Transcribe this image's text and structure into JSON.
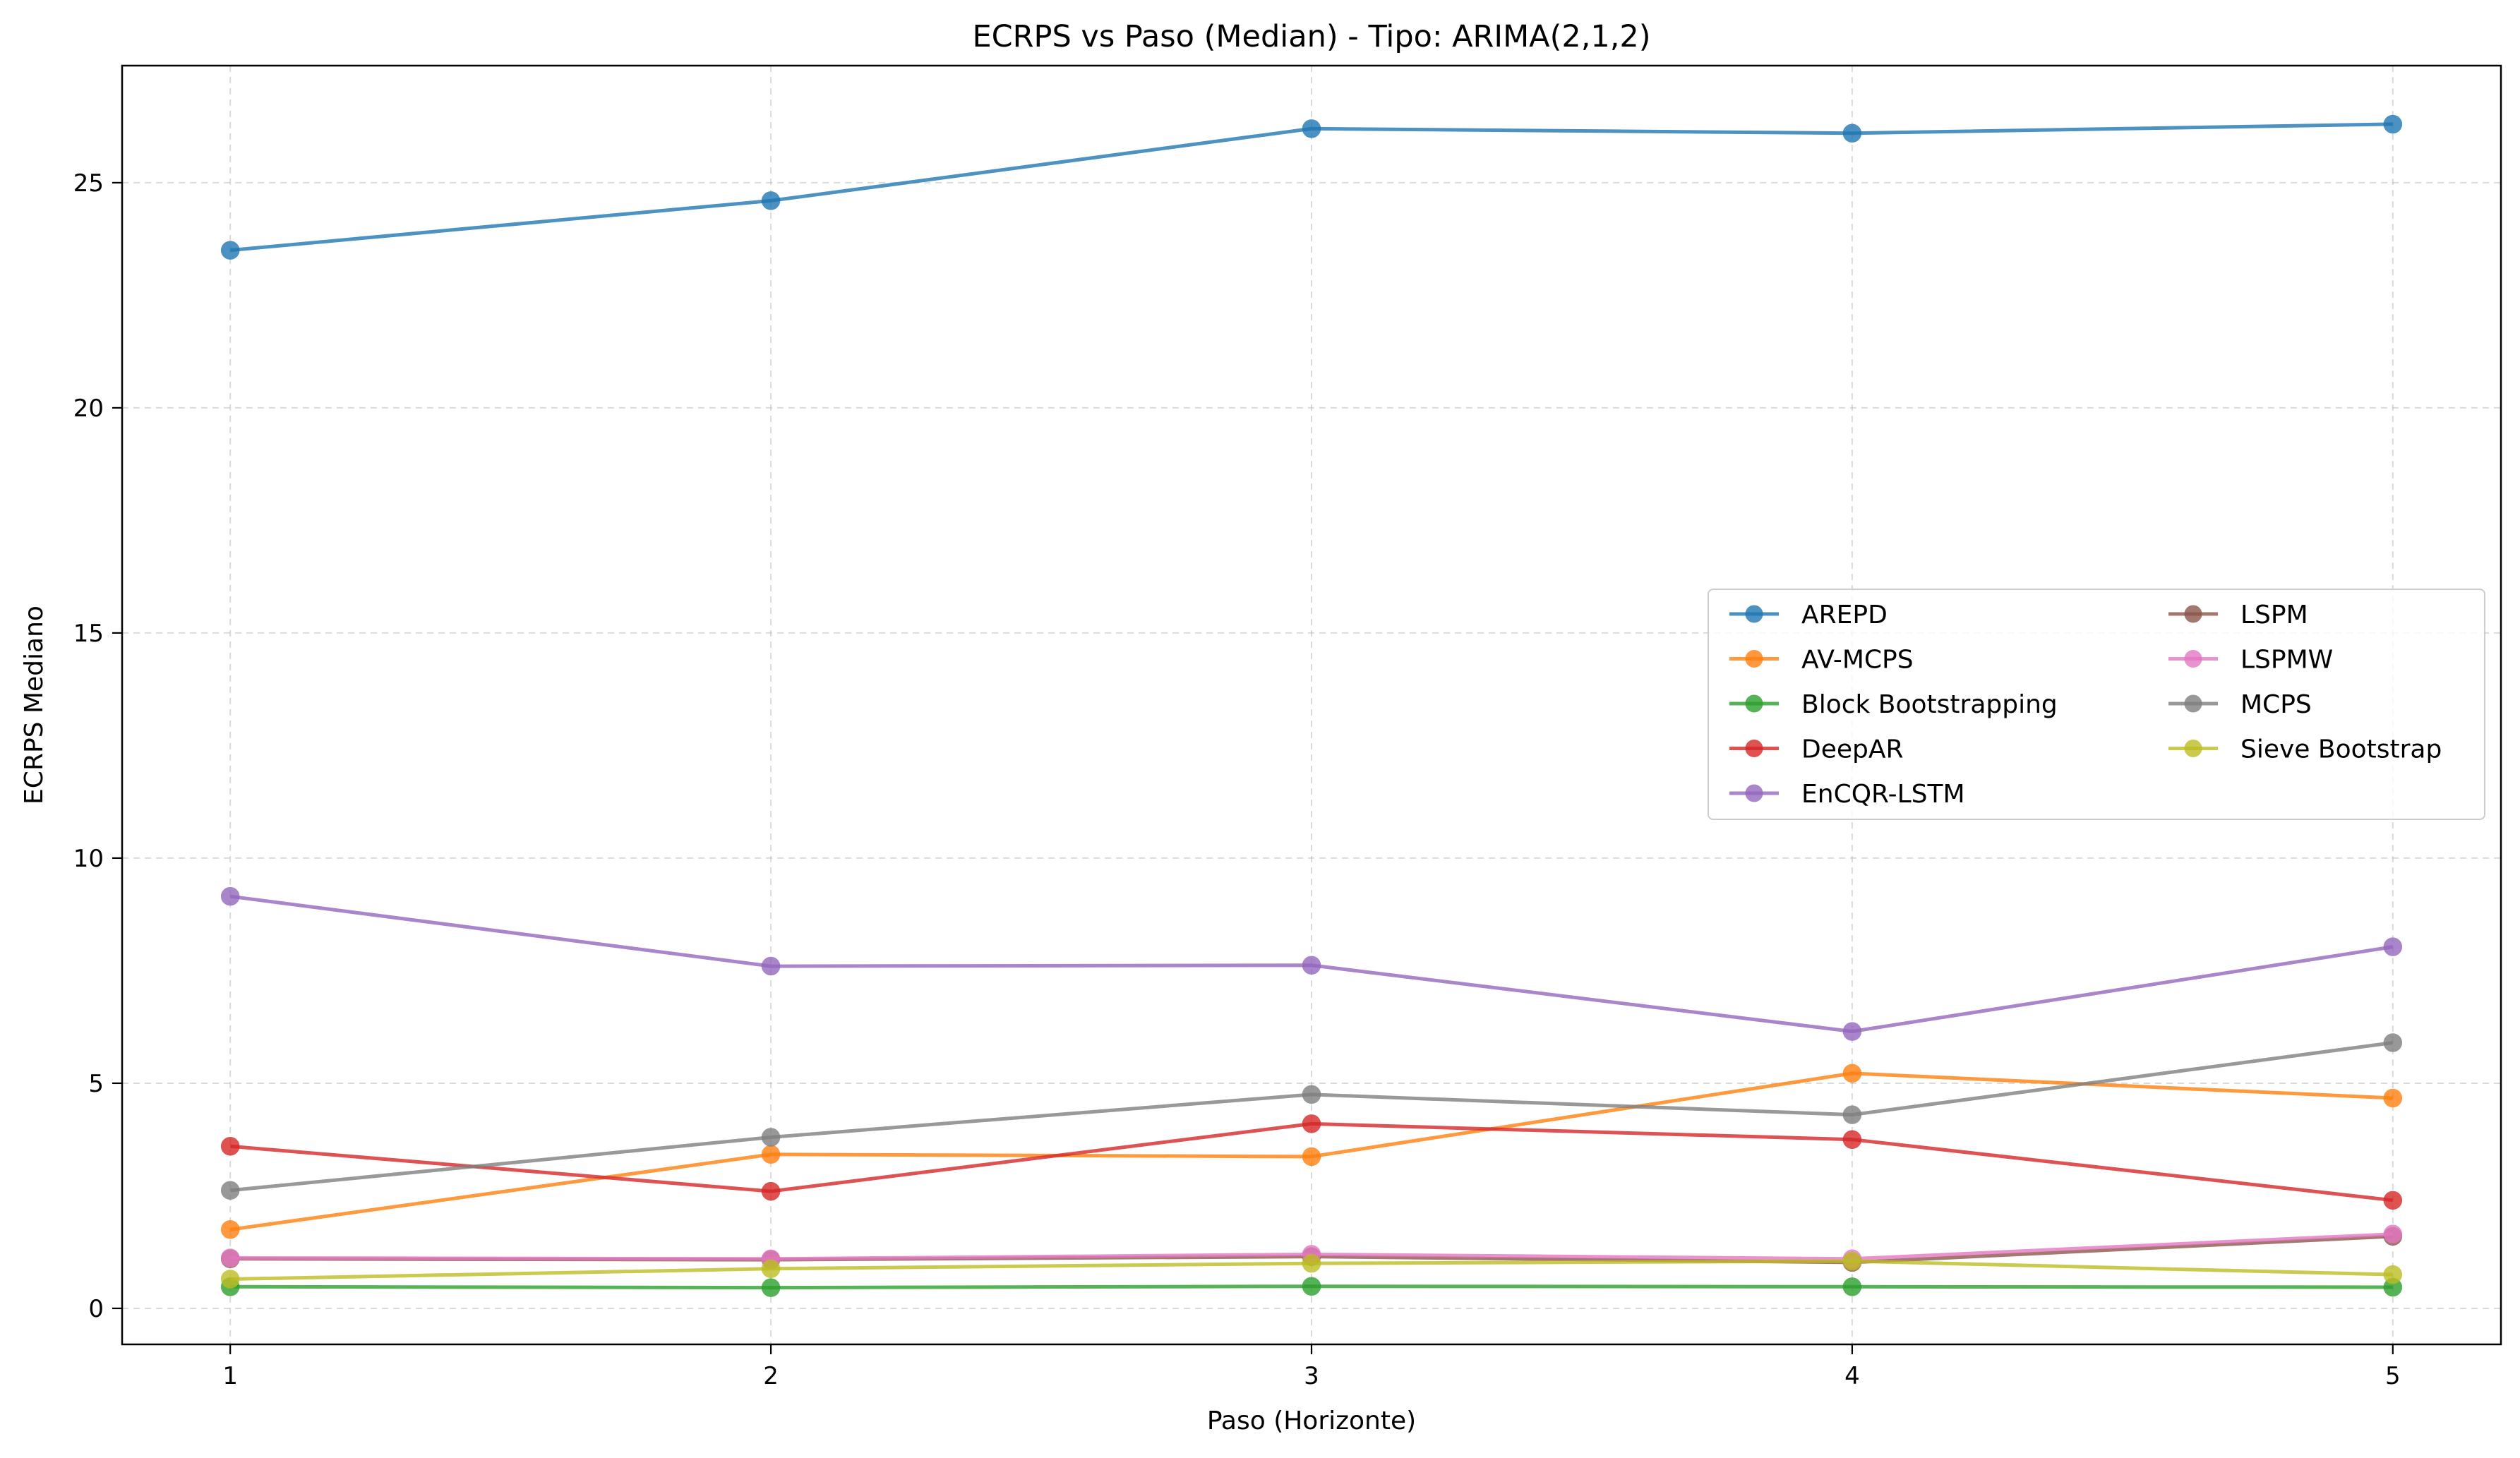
{
  "chart_data": {
    "type": "line",
    "title": "ECRPS vs Paso (Median) - Tipo: ARIMA(2,1,2)",
    "xlabel": "Paso (Horizonte)",
    "ylabel": "ECRPS Mediano",
    "x": [
      1,
      2,
      3,
      4,
      5
    ],
    "xlim": [
      0.8,
      5.2
    ],
    "ylim": [
      -0.8,
      27.6
    ],
    "xticks": [
      1,
      2,
      3,
      4,
      5
    ],
    "yticks": [
      0,
      5,
      10,
      15,
      20,
      25
    ],
    "grid": true,
    "legend": {
      "placement": "center-right",
      "columns": 2
    },
    "series": [
      {
        "name": "AREPD",
        "color": "#1f77b4",
        "values": [
          23.5,
          24.6,
          26.2,
          26.1,
          26.3
        ]
      },
      {
        "name": "AV-MCPS",
        "color": "#ff7f0e",
        "values": [
          1.75,
          3.42,
          3.37,
          5.22,
          4.67
        ]
      },
      {
        "name": "Block Bootstrapping",
        "color": "#2ca02c",
        "values": [
          0.48,
          0.46,
          0.49,
          0.48,
          0.47
        ]
      },
      {
        "name": "DeepAR",
        "color": "#d62728",
        "values": [
          3.6,
          2.6,
          4.1,
          3.75,
          2.4
        ]
      },
      {
        "name": "EnCQR-LSTM",
        "color": "#9467bd",
        "values": [
          9.15,
          7.6,
          7.62,
          6.15,
          8.03
        ]
      },
      {
        "name": "LSPM",
        "color": "#8c564b",
        "values": [
          1.1,
          1.08,
          1.15,
          1.02,
          1.6
        ]
      },
      {
        "name": "LSPMW",
        "color": "#e377c2",
        "values": [
          1.12,
          1.1,
          1.2,
          1.1,
          1.65
        ]
      },
      {
        "name": "MCPS",
        "color": "#7f7f7f",
        "values": [
          2.62,
          3.8,
          4.75,
          4.3,
          5.9
        ]
      },
      {
        "name": "Sieve Bootstrap",
        "color": "#bcbd22",
        "values": [
          0.65,
          0.88,
          1.0,
          1.05,
          0.75
        ]
      }
    ]
  }
}
